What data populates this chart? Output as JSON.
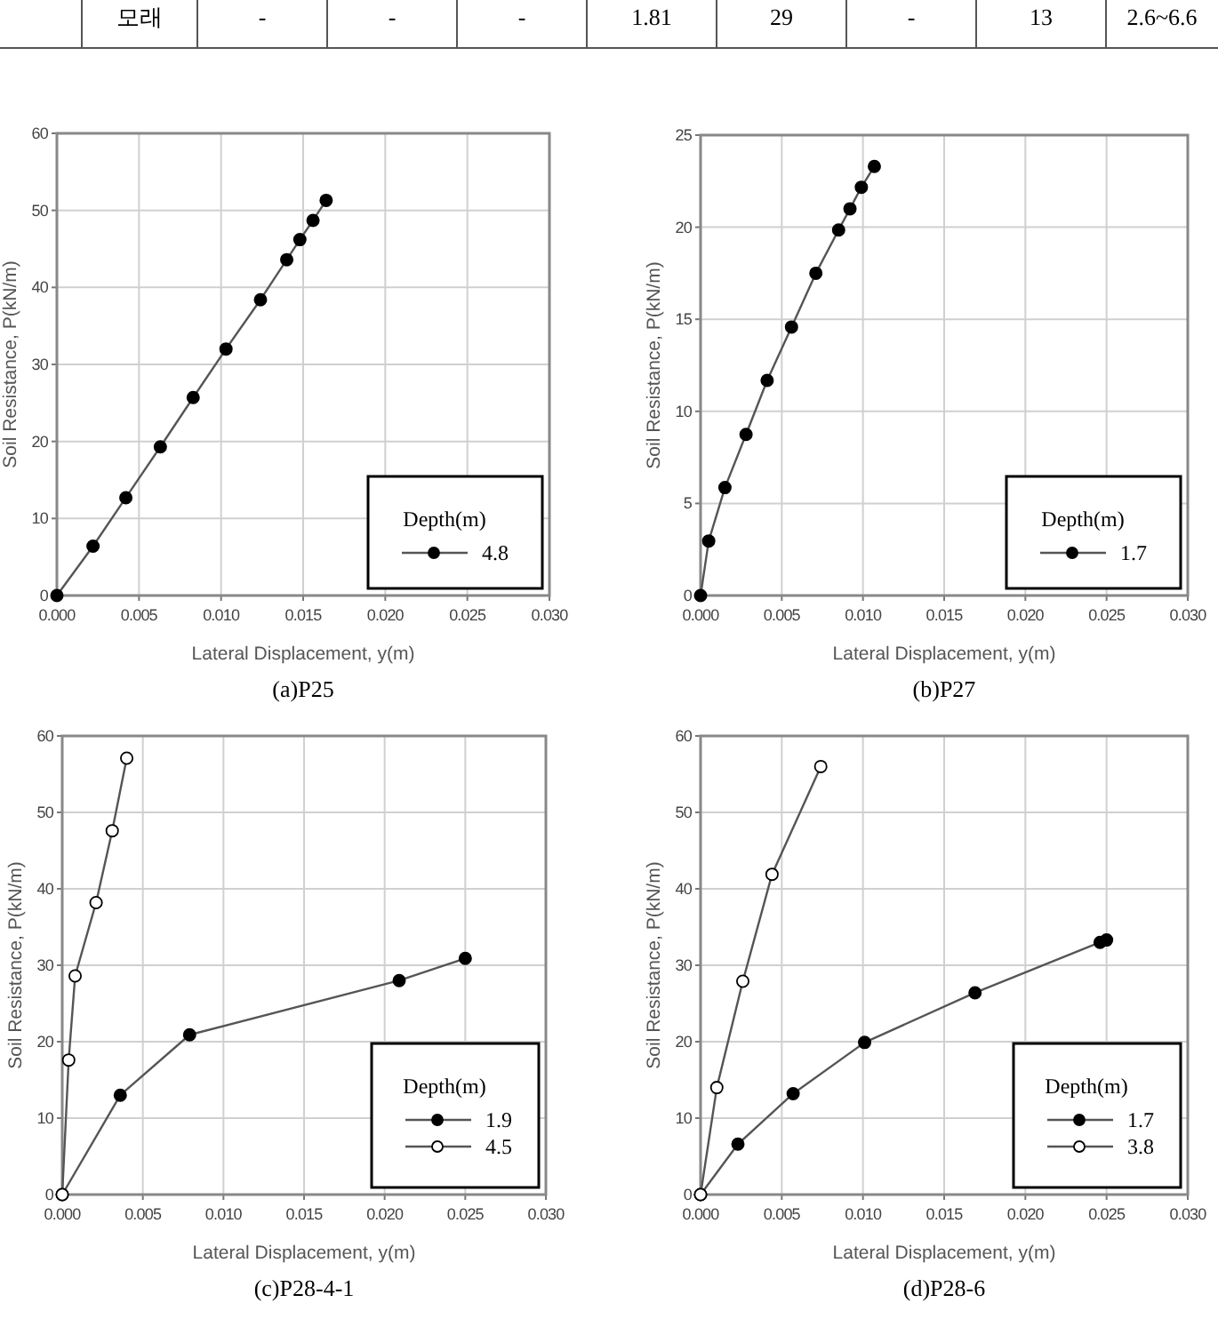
{
  "chart_data": [
    {
      "type": "other",
      "annotations": [
        "모래",
        "-",
        "-",
        "-",
        "1.81",
        "29",
        "-",
        "13",
        "2.6~6.6"
      ]
    },
    {
      "type": "line",
      "title": "(a)P25",
      "xlabel": "Lateral Displacement, y(m)",
      "ylabel": "Soil Resistance, P(kN/m)",
      "legend_title": "Depth(m)",
      "legend": "bottom right",
      "grid": true,
      "marker": "circle",
      "line_style": "solid",
      "xlim": [
        0,
        0.03
      ],
      "xticks": [
        {
          "value": 0,
          "label": "0.000"
        },
        {
          "value": 0.005,
          "label": "0.005"
        },
        {
          "value": 0.01,
          "label": "0.010"
        },
        {
          "value": 0.015,
          "label": "0.015"
        },
        {
          "value": 0.02,
          "label": "0.020"
        },
        {
          "value": 0.025,
          "label": "0.025"
        },
        {
          "value": 0.03,
          "label": "0.030"
        }
      ],
      "ylim": [
        0,
        60
      ],
      "yticks": [
        0,
        10,
        20,
        30,
        40,
        50,
        60
      ],
      "series": [
        {
          "name": "4.8",
          "color": "#000000",
          "x": [
            0,
            0.0022,
            0.0042,
            0.0063,
            0.0083,
            0.0103,
            0.0124,
            0.014,
            0.0148,
            0.0156,
            0.0164
          ],
          "values": [
            0,
            6.4,
            12.7,
            19.3,
            25.7,
            32.0,
            38.4,
            43.6,
            46.2,
            48.7,
            51.3
          ]
        }
      ]
    },
    {
      "type": "line",
      "title": "(b)P27",
      "xlabel": "Lateral Displacement, y(m)",
      "ylabel": "Soil Resistance, P(kN/m)",
      "legend_title": "Depth(m)",
      "legend": "bottom right",
      "grid": true,
      "marker": "circle",
      "line_style": "solid",
      "xlim": [
        0,
        0.03
      ],
      "xticks": [
        {
          "value": 0,
          "label": "0.000"
        },
        {
          "value": 0.005,
          "label": "0.005"
        },
        {
          "value": 0.01,
          "label": "0.010"
        },
        {
          "value": 0.015,
          "label": "0.015"
        },
        {
          "value": 0.02,
          "label": "0.020"
        },
        {
          "value": 0.025,
          "label": "0.025"
        },
        {
          "value": 0.03,
          "label": "0.030"
        }
      ],
      "ylim": [
        0,
        25
      ],
      "yticks": [
        0,
        5,
        10,
        15,
        20,
        25
      ],
      "series": [
        {
          "name": "1.7",
          "color": "#000000",
          "x": [
            0,
            0.0005,
            0.0015,
            0.0028,
            0.0041,
            0.0056,
            0.0071,
            0.0085,
            0.0092,
            0.0099,
            0.0107
          ],
          "values": [
            0,
            2.96,
            5.86,
            8.75,
            11.68,
            14.58,
            17.5,
            19.85,
            21.0,
            22.17,
            23.3
          ]
        }
      ]
    },
    {
      "type": "line",
      "title": "(c)P28-4-1",
      "xlabel": "Lateral Displacement, y(m)",
      "ylabel": "Soil Resistance, P(kN/m)",
      "legend_title": "Depth(m)",
      "legend": "bottom right",
      "grid": true,
      "marker": "circle",
      "line_style": "solid",
      "xlim": [
        0,
        0.03
      ],
      "xticks": [
        {
          "value": 0,
          "label": "0.000"
        },
        {
          "value": 0.005,
          "label": "0.005"
        },
        {
          "value": 0.01,
          "label": "0.010"
        },
        {
          "value": 0.015,
          "label": "0.015"
        },
        {
          "value": 0.02,
          "label": "0.020"
        },
        {
          "value": 0.025,
          "label": "0.025"
        },
        {
          "value": 0.03,
          "label": "0.030"
        }
      ],
      "ylim": [
        0,
        60
      ],
      "yticks": [
        0,
        10,
        20,
        30,
        40,
        50,
        60
      ],
      "series": [
        {
          "name": "1.9",
          "color": "#000000",
          "x": [
            0,
            0.0036,
            0.0079,
            0.0209,
            0.025
          ],
          "values": [
            0,
            13.0,
            20.9,
            28.0,
            30.9
          ]
        },
        {
          "name": "4.5",
          "color": "#ffffff",
          "x": [
            0,
            0.0004,
            0.0008,
            0.0021,
            0.0031,
            0.004
          ],
          "values": [
            0,
            17.6,
            28.6,
            38.2,
            47.6,
            57.1
          ]
        }
      ]
    },
    {
      "type": "line",
      "title": "(d)P28-6",
      "xlabel": "Lateral Displacement, y(m)",
      "ylabel": "Soil Resistance, P(kN/m)",
      "legend_title": "Depth(m)",
      "legend": "bottom right",
      "grid": true,
      "marker": "circle",
      "line_style": "solid",
      "xlim": [
        0,
        0.03
      ],
      "xticks": [
        {
          "value": 0,
          "label": "0.000"
        },
        {
          "value": 0.005,
          "label": "0.005"
        },
        {
          "value": 0.01,
          "label": "0.010"
        },
        {
          "value": 0.015,
          "label": "0.015"
        },
        {
          "value": 0.02,
          "label": "0.020"
        },
        {
          "value": 0.025,
          "label": "0.025"
        },
        {
          "value": 0.03,
          "label": "0.030"
        }
      ],
      "ylim": [
        0,
        60
      ],
      "yticks": [
        0,
        10,
        20,
        30,
        40,
        50,
        60
      ],
      "series": [
        {
          "name": "1.7",
          "color": "#000000",
          "x": [
            0,
            0.0023,
            0.0057,
            0.0101,
            0.0169,
            0.0246,
            0.025
          ],
          "values": [
            0,
            6.6,
            13.2,
            19.9,
            26.4,
            33.0,
            33.3
          ]
        },
        {
          "name": "3.8",
          "color": "#ffffff",
          "x": [
            0,
            0.001,
            0.0026,
            0.0044,
            0.0074
          ],
          "values": [
            0,
            14.0,
            27.9,
            41.9,
            56.0
          ]
        }
      ]
    }
  ]
}
